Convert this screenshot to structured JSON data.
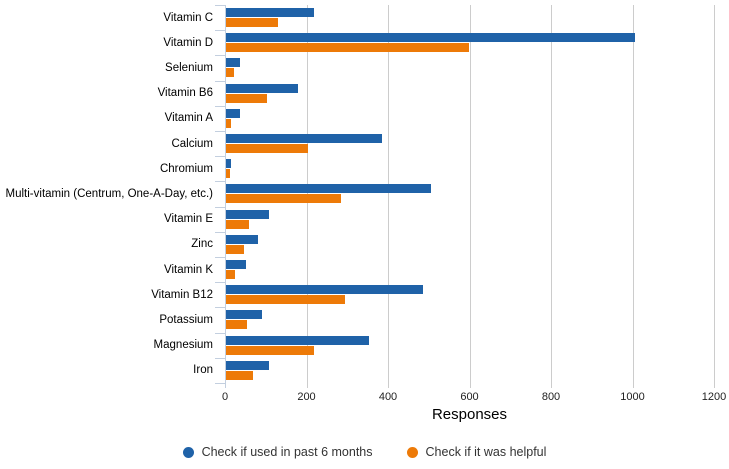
{
  "chart_data": {
    "type": "bar",
    "orientation": "horizontal",
    "title": "",
    "xlabel": "Responses",
    "ylabel": "",
    "xlim": [
      0,
      1200
    ],
    "xticks": [
      0,
      200,
      400,
      600,
      800,
      1000,
      1200
    ],
    "grid": true,
    "legend_position": "bottom",
    "grid_color": "#cccccc",
    "axis_color": "#c3cfdf",
    "categories": [
      "Vitamin C",
      "Vitamin D",
      "Selenium",
      "Vitamin B6",
      "Vitamin A",
      "Calcium",
      "Chromium",
      "Multi-vitamin (Centrum, One-A-Day, etc.)",
      "Vitamin E",
      "Zinc",
      "Vitamin K",
      "Vitamin B12",
      "Potassium",
      "Magnesium",
      "Iron"
    ],
    "series": [
      {
        "name": "Check if used in past 6 months",
        "color": "#1f62a8",
        "values": [
          215,
          1003,
          34,
          177,
          35,
          383,
          12,
          503,
          106,
          78,
          49,
          483,
          88,
          352,
          105
        ]
      },
      {
        "name": "Check if it was helpful",
        "color": "#ed7a08",
        "values": [
          128,
          597,
          20,
          100,
          13,
          201,
          9,
          282,
          56,
          45,
          22,
          292,
          51,
          215,
          66
        ]
      }
    ]
  }
}
